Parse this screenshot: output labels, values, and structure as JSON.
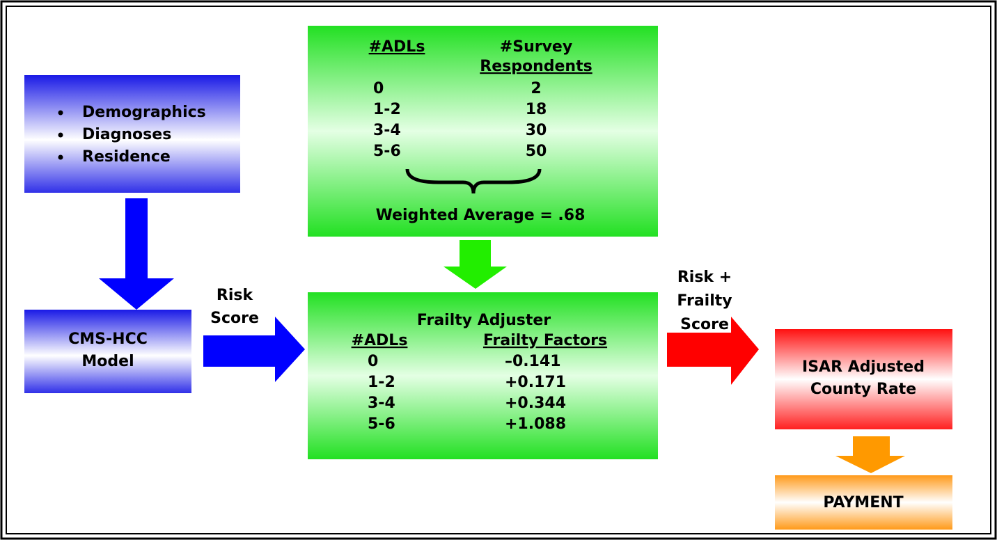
{
  "inputs": {
    "items": [
      "Demographics",
      "Diagnoses",
      "Residence"
    ]
  },
  "model": {
    "lines": [
      "CMS-HCC",
      "Model"
    ]
  },
  "risk_label": {
    "lines": [
      "Risk",
      "Score"
    ]
  },
  "survey": {
    "headers": [
      [
        "#ADLs"
      ],
      [
        "#Survey",
        "Respondents"
      ]
    ],
    "rows": [
      [
        "0",
        "2"
      ],
      [
        "1-2",
        "18"
      ],
      [
        "3-4",
        "30"
      ],
      [
        "5-6",
        "50"
      ]
    ],
    "summary": "Weighted Average = .68"
  },
  "frailty": {
    "title": "Frailty Adjuster",
    "headers": [
      "#ADLs",
      "Frailty Factors"
    ],
    "rows": [
      [
        "0",
        "–0.141"
      ],
      [
        "1-2",
        "+0.171"
      ],
      [
        "3-4",
        "+0.344"
      ],
      [
        "5-6",
        "+1.088"
      ]
    ]
  },
  "combined_label": {
    "lines": [
      "Risk +",
      "Frailty",
      "Score"
    ]
  },
  "rate": {
    "lines": [
      "ISAR Adjusted",
      "County Rate"
    ]
  },
  "payment": {
    "label": "PAYMENT"
  }
}
